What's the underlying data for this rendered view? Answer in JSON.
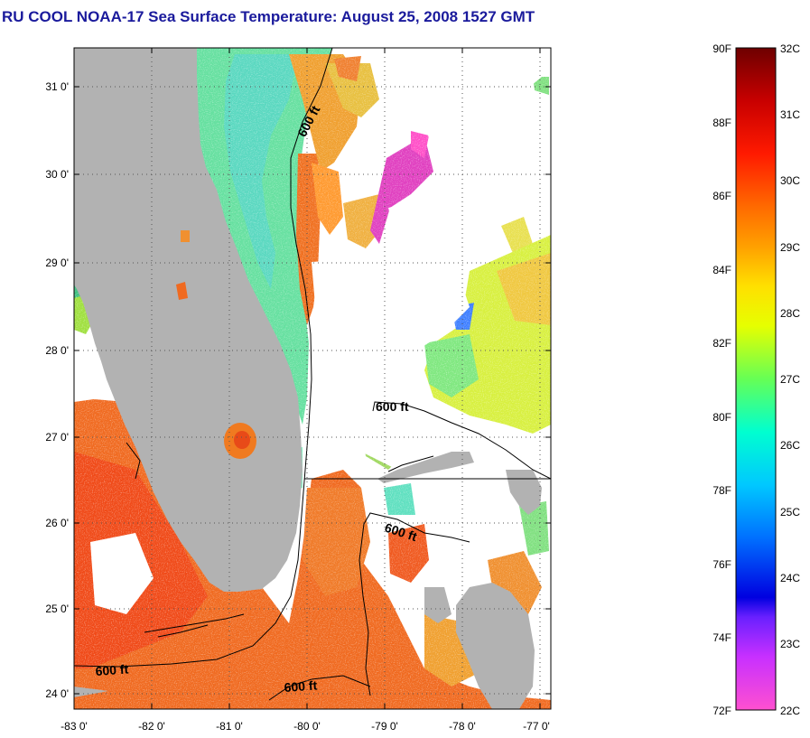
{
  "title": "RU COOL  NOAA-17  Sea Surface Temperature:  August 25, 2008 1527 GMT",
  "map": {
    "lon_range": [
      -83,
      -76.85
    ],
    "lat_range": [
      23.85,
      31.45
    ],
    "lat_ticks": [
      "31 0'",
      "30 0'",
      "29 0'",
      "28 0'",
      "27 0'",
      "26 0'",
      "25 0'",
      "24 0'"
    ],
    "lon_ticks": [
      "-83 0'",
      "-82 0'",
      "-81 0'",
      "-80 0'",
      "-79 0'",
      "-78 0'",
      "-77 0'"
    ],
    "grid": "dotted",
    "contour_labels": [
      "600 ft",
      "600 ft",
      "600 ft",
      "600 ft",
      "600 ft"
    ],
    "land_color": "#b2b2b2",
    "cloud_color": "#ffffff"
  },
  "colorbar": {
    "f_labels": [
      "90F",
      "88F",
      "86F",
      "84F",
      "82F",
      "80F",
      "78F",
      "76F",
      "74F",
      "72F"
    ],
    "c_labels": [
      "32C",
      "31C",
      "30C",
      "29C",
      "28C",
      "27C",
      "26C",
      "25C",
      "24C",
      "23C",
      "22C"
    ],
    "colors_top_to_bottom": [
      "#7a0000",
      "#cc0000",
      "#ff2a00",
      "#ff8000",
      "#ffcc00",
      "#ffff00",
      "#80ff40",
      "#00ffcc",
      "#00ccff",
      "#0060ff",
      "#0000cc",
      "#8000ff",
      "#ff40ff",
      "#ff66cc"
    ]
  }
}
